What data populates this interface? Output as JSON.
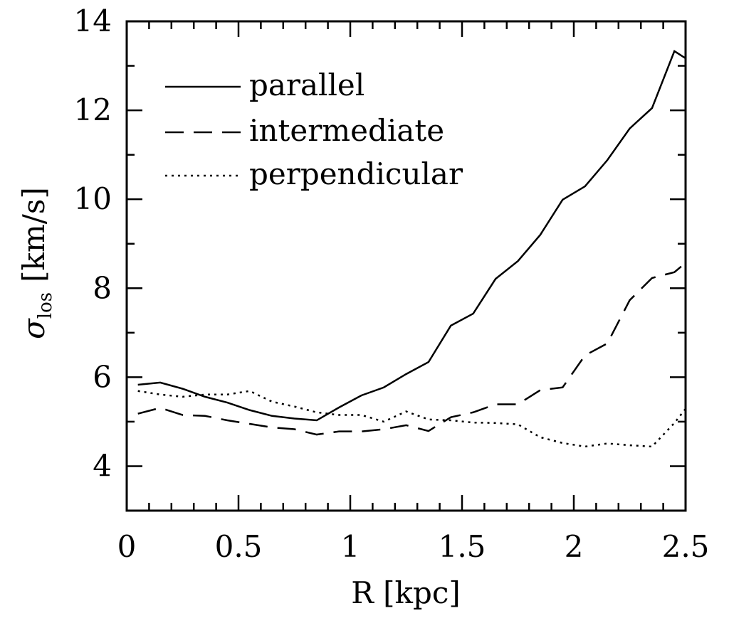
{
  "chart_data": {
    "type": "line",
    "title": "",
    "xlabel": "R [kpc]",
    "ylabel_symbol": "σ",
    "ylabel_subscript": "los",
    "ylabel_unit": "[km/s]",
    "xlim": [
      0,
      2.5
    ],
    "ylim": [
      3,
      14
    ],
    "xticks": [
      "0",
      "0.5",
      "1",
      "1.5",
      "2",
      "2.5"
    ],
    "xtick_values": [
      0,
      0.5,
      1,
      1.5,
      2,
      2.5
    ],
    "yticks": [
      "4",
      "6",
      "8",
      "10",
      "12",
      "14"
    ],
    "ytick_values": [
      4,
      6,
      8,
      10,
      12,
      14
    ],
    "grid": false,
    "legend_position": "top-left",
    "x": [
      0.05,
      0.15,
      0.25,
      0.35,
      0.45,
      0.55,
      0.65,
      0.75,
      0.85,
      0.95,
      1.05,
      1.15,
      1.25,
      1.35,
      1.45,
      1.55,
      1.65,
      1.75,
      1.85,
      1.95,
      2.05,
      2.15,
      2.25,
      2.35,
      2.45,
      2.5
    ],
    "series": [
      {
        "name": "parallel",
        "style": "solid",
        "values": [
          5.83,
          5.88,
          5.74,
          5.56,
          5.43,
          5.26,
          5.13,
          5.07,
          5.03,
          5.32,
          5.59,
          5.77,
          6.07,
          6.34,
          7.16,
          7.43,
          8.21,
          8.61,
          9.2,
          9.99,
          10.29,
          10.88,
          11.59,
          12.05,
          13.33,
          13.17
        ]
      },
      {
        "name": "intermediate",
        "style": "dashed",
        "values": [
          5.18,
          5.31,
          5.15,
          5.13,
          5.03,
          4.95,
          4.87,
          4.83,
          4.71,
          4.78,
          4.78,
          4.83,
          4.92,
          4.79,
          5.1,
          5.21,
          5.39,
          5.39,
          5.71,
          5.77,
          6.49,
          6.76,
          7.73,
          8.23,
          8.36,
          8.57
        ]
      },
      {
        "name": "perpendicular",
        "style": "dotted",
        "values": [
          5.69,
          5.61,
          5.56,
          5.61,
          5.61,
          5.69,
          5.45,
          5.34,
          5.21,
          5.15,
          5.15,
          5.0,
          5.23,
          5.05,
          5.03,
          4.98,
          4.97,
          4.94,
          4.65,
          4.52,
          4.44,
          4.51,
          4.47,
          4.44,
          4.97,
          5.29
        ]
      }
    ]
  }
}
